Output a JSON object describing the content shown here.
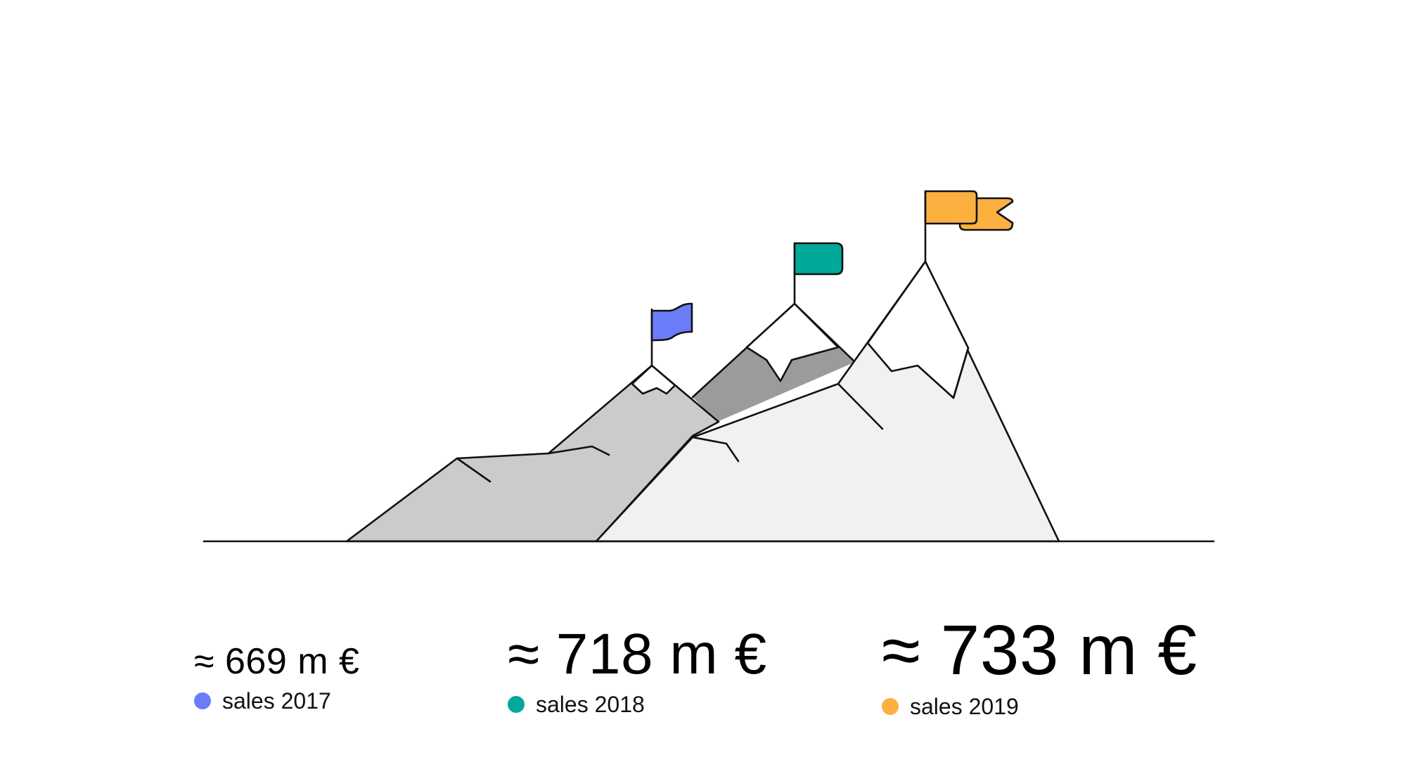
{
  "chart_data": {
    "type": "bar",
    "categories": [
      "sales 2017",
      "sales 2018",
      "sales 2019"
    ],
    "values": [
      669,
      718,
      733
    ],
    "value_labels": [
      "≈ 669 m €",
      "≈ 718 m €",
      "≈ 733 m €"
    ],
    "colors": [
      "#6B7CF8",
      "#00A99A",
      "#FBB040"
    ],
    "legend_placement": "below each peak"
  }
}
